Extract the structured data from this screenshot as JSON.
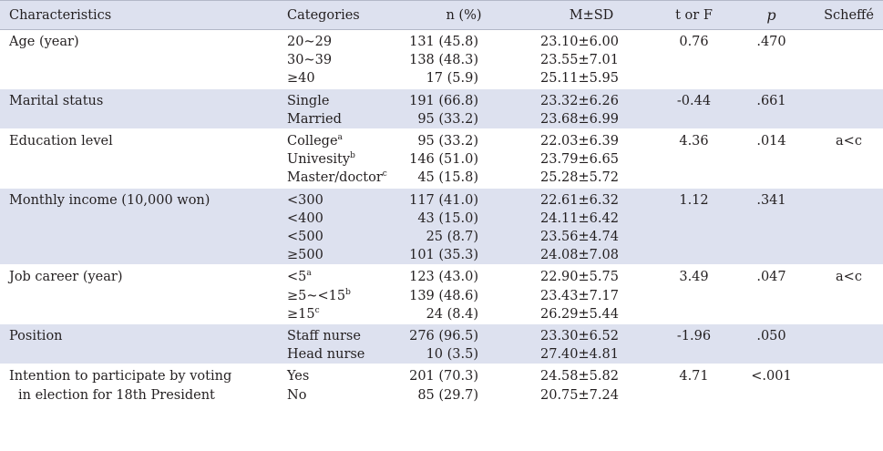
{
  "headers": {
    "characteristics": "Characteristics",
    "categories": "Categories",
    "n": "n (%)",
    "msd": "M±SD",
    "t": "t or F",
    "p": "p",
    "scheffe": "Scheffé"
  },
  "rows": [
    {
      "characteristic": [
        "Age (year)"
      ],
      "categories": [
        {
          "text": "20~29"
        },
        {
          "text": "30~39"
        },
        {
          "text": "≥40"
        }
      ],
      "n": [
        "131 (45.8)",
        "138 (48.3)",
        "17 (5.9)"
      ],
      "msd": [
        "23.10±6.00",
        "23.55±7.01",
        "25.11±5.95"
      ],
      "t": "0.76",
      "p": ".470",
      "scheffe": ""
    },
    {
      "characteristic": [
        "Marital status"
      ],
      "categories": [
        {
          "text": "Single"
        },
        {
          "text": "Married"
        }
      ],
      "n": [
        "191 (66.8)",
        "95 (33.2)"
      ],
      "msd": [
        "23.32±6.26",
        "23.68±6.99"
      ],
      "t": "-0.44",
      "p": ".661",
      "scheffe": ""
    },
    {
      "characteristic": [
        "Education level"
      ],
      "categories": [
        {
          "text": "College",
          "sup": "a"
        },
        {
          "text": "Univesity",
          "sup": "b"
        },
        {
          "text": "Master/doctor",
          "sup": "c"
        }
      ],
      "n": [
        "95 (33.2)",
        "146 (51.0)",
        "45 (15.8)"
      ],
      "msd": [
        "22.03±6.39",
        "23.79±6.65",
        "25.28±5.72"
      ],
      "t": "4.36",
      "p": ".014",
      "scheffe": "a<c"
    },
    {
      "characteristic": [
        "Monthly income (10,000 won)"
      ],
      "categories": [
        {
          "text": "<300"
        },
        {
          "text": "<400"
        },
        {
          "text": "<500"
        },
        {
          "text": "≥500"
        }
      ],
      "n": [
        "117 (41.0)",
        "43 (15.0)",
        "25 (8.7)",
        "101 (35.3)"
      ],
      "msd": [
        "22.61±6.32",
        "24.11±6.42",
        "23.56±4.74",
        "24.08±7.08"
      ],
      "t": "1.12",
      "p": ".341",
      "scheffe": ""
    },
    {
      "characteristic": [
        "Job career (year)"
      ],
      "categories": [
        {
          "text": "<5",
          "sup": "a"
        },
        {
          "text": "≥5~<15",
          "sup": "b"
        },
        {
          "text": "≥15",
          "sup": "c"
        }
      ],
      "n": [
        "123 (43.0)",
        "139 (48.6)",
        "24 (8.4)"
      ],
      "msd": [
        "22.90±5.75",
        "23.43±7.17",
        "26.29±5.44"
      ],
      "t": "3.49",
      "p": ".047",
      "scheffe": "a<c"
    },
    {
      "characteristic": [
        "Position"
      ],
      "categories": [
        {
          "text": "Staff nurse"
        },
        {
          "text": "Head nurse"
        }
      ],
      "n": [
        "276 (96.5)",
        "10 (3.5)"
      ],
      "msd": [
        "23.30±6.52",
        "27.40±4.81"
      ],
      "t": "-1.96",
      "p": ".050",
      "scheffe": ""
    },
    {
      "characteristic": [
        "Intention to participate by voting",
        "in election for 18th President"
      ],
      "categories": [
        {
          "text": "Yes"
        },
        {
          "text": "No"
        }
      ],
      "n": [
        "201 (70.3)",
        "85 (29.7)"
      ],
      "msd": [
        "24.58±5.82",
        "20.75±7.24"
      ],
      "t": "4.71",
      "p": "<.001",
      "scheffe": ""
    }
  ]
}
